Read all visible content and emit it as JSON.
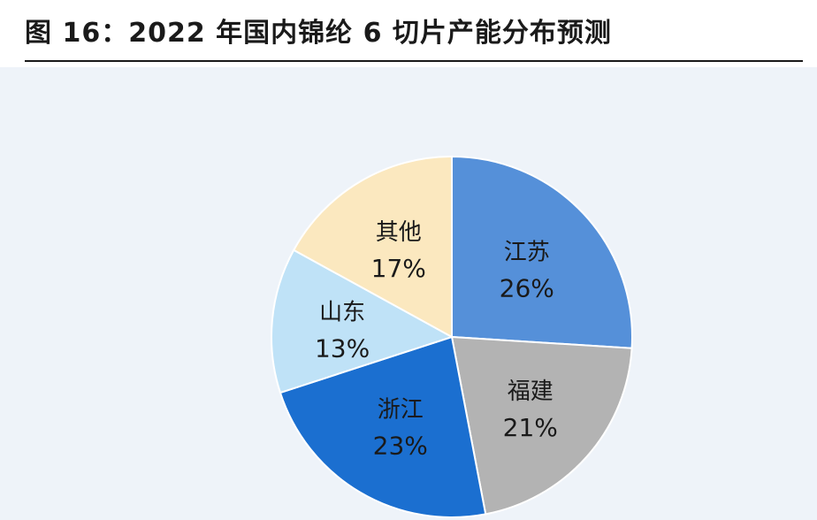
{
  "header": {
    "title": "图 16：2022 年国内锦纶 6 切片产能分布预测"
  },
  "chart_data": {
    "type": "pie",
    "title": "图 16：2022 年国内锦纶 6 切片产能分布预测",
    "start_angle_deg": 0,
    "direction": "clockwise",
    "slices": [
      {
        "name": "江苏",
        "value": 26,
        "label": "26%",
        "color": "#5590d9"
      },
      {
        "name": "福建",
        "value": 21,
        "label": "21%",
        "color": "#b3b3b3"
      },
      {
        "name": "浙江",
        "value": 23,
        "label": "23%",
        "color": "#1b6fd0"
      },
      {
        "name": "山东",
        "value": 13,
        "label": "13%",
        "color": "#bfe2f7"
      },
      {
        "name": "其他",
        "value": 17,
        "label": "17%",
        "color": "#fbe8bf"
      }
    ]
  }
}
